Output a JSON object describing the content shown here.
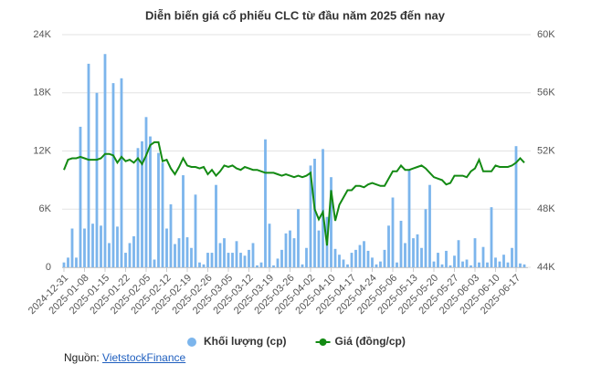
{
  "chart_data": {
    "type": "combo",
    "title": "Diễn biến giá cổ phiếu CLC từ đầu năm 2025 đến nay",
    "categories": [
      "2024-12-31",
      null,
      null,
      null,
      null,
      "2025-01-08",
      null,
      null,
      null,
      null,
      "2025-01-15",
      null,
      null,
      null,
      null,
      "2025-01-22",
      null,
      null,
      null,
      null,
      "2025-02-05",
      null,
      null,
      null,
      null,
      "2025-02-12",
      null,
      null,
      null,
      null,
      "2025-02-19",
      null,
      null,
      null,
      null,
      "2025-02-26",
      null,
      null,
      null,
      null,
      "2025-03-05",
      null,
      null,
      null,
      null,
      "2025-03-12",
      null,
      null,
      null,
      null,
      "2025-03-19",
      null,
      null,
      null,
      null,
      "2025-03-26",
      null,
      null,
      null,
      null,
      "2025-04-02",
      null,
      null,
      null,
      null,
      "2025-04-10",
      null,
      null,
      null,
      null,
      "2025-04-17",
      null,
      null,
      null,
      null,
      "2025-04-24",
      null,
      null,
      null,
      null,
      "2025-05-06",
      null,
      null,
      null,
      null,
      "2025-05-13",
      null,
      null,
      null,
      null,
      "2025-05-20",
      null,
      null,
      null,
      null,
      "2025-05-27",
      null,
      null,
      null,
      null,
      "2025-06-03",
      null,
      null,
      null,
      null,
      "2025-06-10",
      null,
      null,
      null,
      null,
      "2025-06-17",
      null,
      null
    ],
    "series": [
      {
        "name": "Khối lượng (cp)",
        "type": "bar",
        "color": "#7cb5ec",
        "values": [
          500,
          1000,
          4000,
          1000,
          14500,
          4000,
          21000,
          4500,
          18000,
          4300,
          22000,
          2500,
          19000,
          4200,
          19500,
          1500,
          2500,
          3200,
          12300,
          13000,
          15500,
          13500,
          800,
          11800,
          10800,
          4000,
          6500,
          2400,
          3000,
          9500,
          3100,
          2000,
          7500,
          500,
          300,
          1500,
          1500,
          8500,
          2500,
          3000,
          1500,
          1500,
          2700,
          1500,
          1200,
          1800,
          2500,
          200,
          500,
          13200,
          4500,
          200,
          900,
          1800,
          3500,
          3800,
          3000,
          6000,
          300,
          2000,
          10500,
          11200,
          3800,
          12200,
          5200,
          9300,
          1900,
          1300,
          800,
          300,
          1500,
          1800,
          2300,
          2700,
          1700,
          1000,
          300,
          600,
          1800,
          4300,
          7200,
          500,
          4800,
          2500,
          10000,
          3000,
          3400,
          2000,
          6000,
          8500,
          600,
          1500,
          300,
          1700,
          200,
          1200,
          2800,
          600,
          800,
          200,
          3000,
          500,
          2100,
          500,
          6200,
          1000,
          600,
          1300,
          500,
          2000,
          12500,
          400,
          300
        ]
      },
      {
        "name": "Giá (đồng/cp)",
        "type": "line",
        "axis": "y2",
        "color": "#138a13",
        "values": [
          50700,
          51400,
          51500,
          51500,
          51600,
          51500,
          51400,
          51400,
          51400,
          51500,
          51800,
          51800,
          51700,
          51200,
          51600,
          51300,
          51400,
          51200,
          51500,
          51100,
          51700,
          52400,
          52600,
          52600,
          51300,
          51400,
          50800,
          50400,
          50900,
          51500,
          51000,
          50900,
          50900,
          50800,
          50900,
          50400,
          50700,
          50300,
          50600,
          51000,
          50900,
          51000,
          50800,
          50700,
          50900,
          50800,
          50700,
          50700,
          50600,
          50500,
          50500,
          50500,
          50400,
          50300,
          50400,
          50300,
          50200,
          50300,
          50200,
          50300,
          50500,
          48000,
          47300,
          47800,
          45500,
          49300,
          47200,
          48300,
          48800,
          49300,
          49300,
          49600,
          49600,
          49500,
          49700,
          49800,
          49700,
          49600,
          49600,
          50100,
          50600,
          50600,
          51000,
          50700,
          50700,
          50800,
          50900,
          51000,
          50800,
          50500,
          50200,
          50100,
          50000,
          49700,
          49800,
          50300,
          50300,
          50300,
          50200,
          50600,
          50800,
          51400,
          50600,
          50600,
          50600,
          51000,
          50900,
          50900,
          50900,
          51000,
          51200,
          51500,
          51200
        ]
      }
    ],
    "ylim": [
      0,
      24000
    ],
    "yticks": [
      0,
      {
        "value": 6000,
        "label": "6K"
      },
      {
        "value": 12000,
        "label": "12K"
      },
      {
        "value": 18000,
        "label": "18K"
      },
      {
        "value": 24000,
        "label": "24K"
      }
    ],
    "y2lim": [
      44000,
      60000
    ],
    "y2ticks": [
      {
        "value": 44000,
        "label": "44K"
      },
      {
        "value": 48000,
        "label": "48K"
      },
      {
        "value": 52000,
        "label": "52K"
      },
      {
        "value": 56000,
        "label": "56K"
      },
      {
        "value": 60000,
        "label": "60K"
      }
    ],
    "grid": true,
    "legend": "bottom"
  },
  "source": {
    "prefix": "Nguồn:",
    "link": "VietstockFinance"
  }
}
